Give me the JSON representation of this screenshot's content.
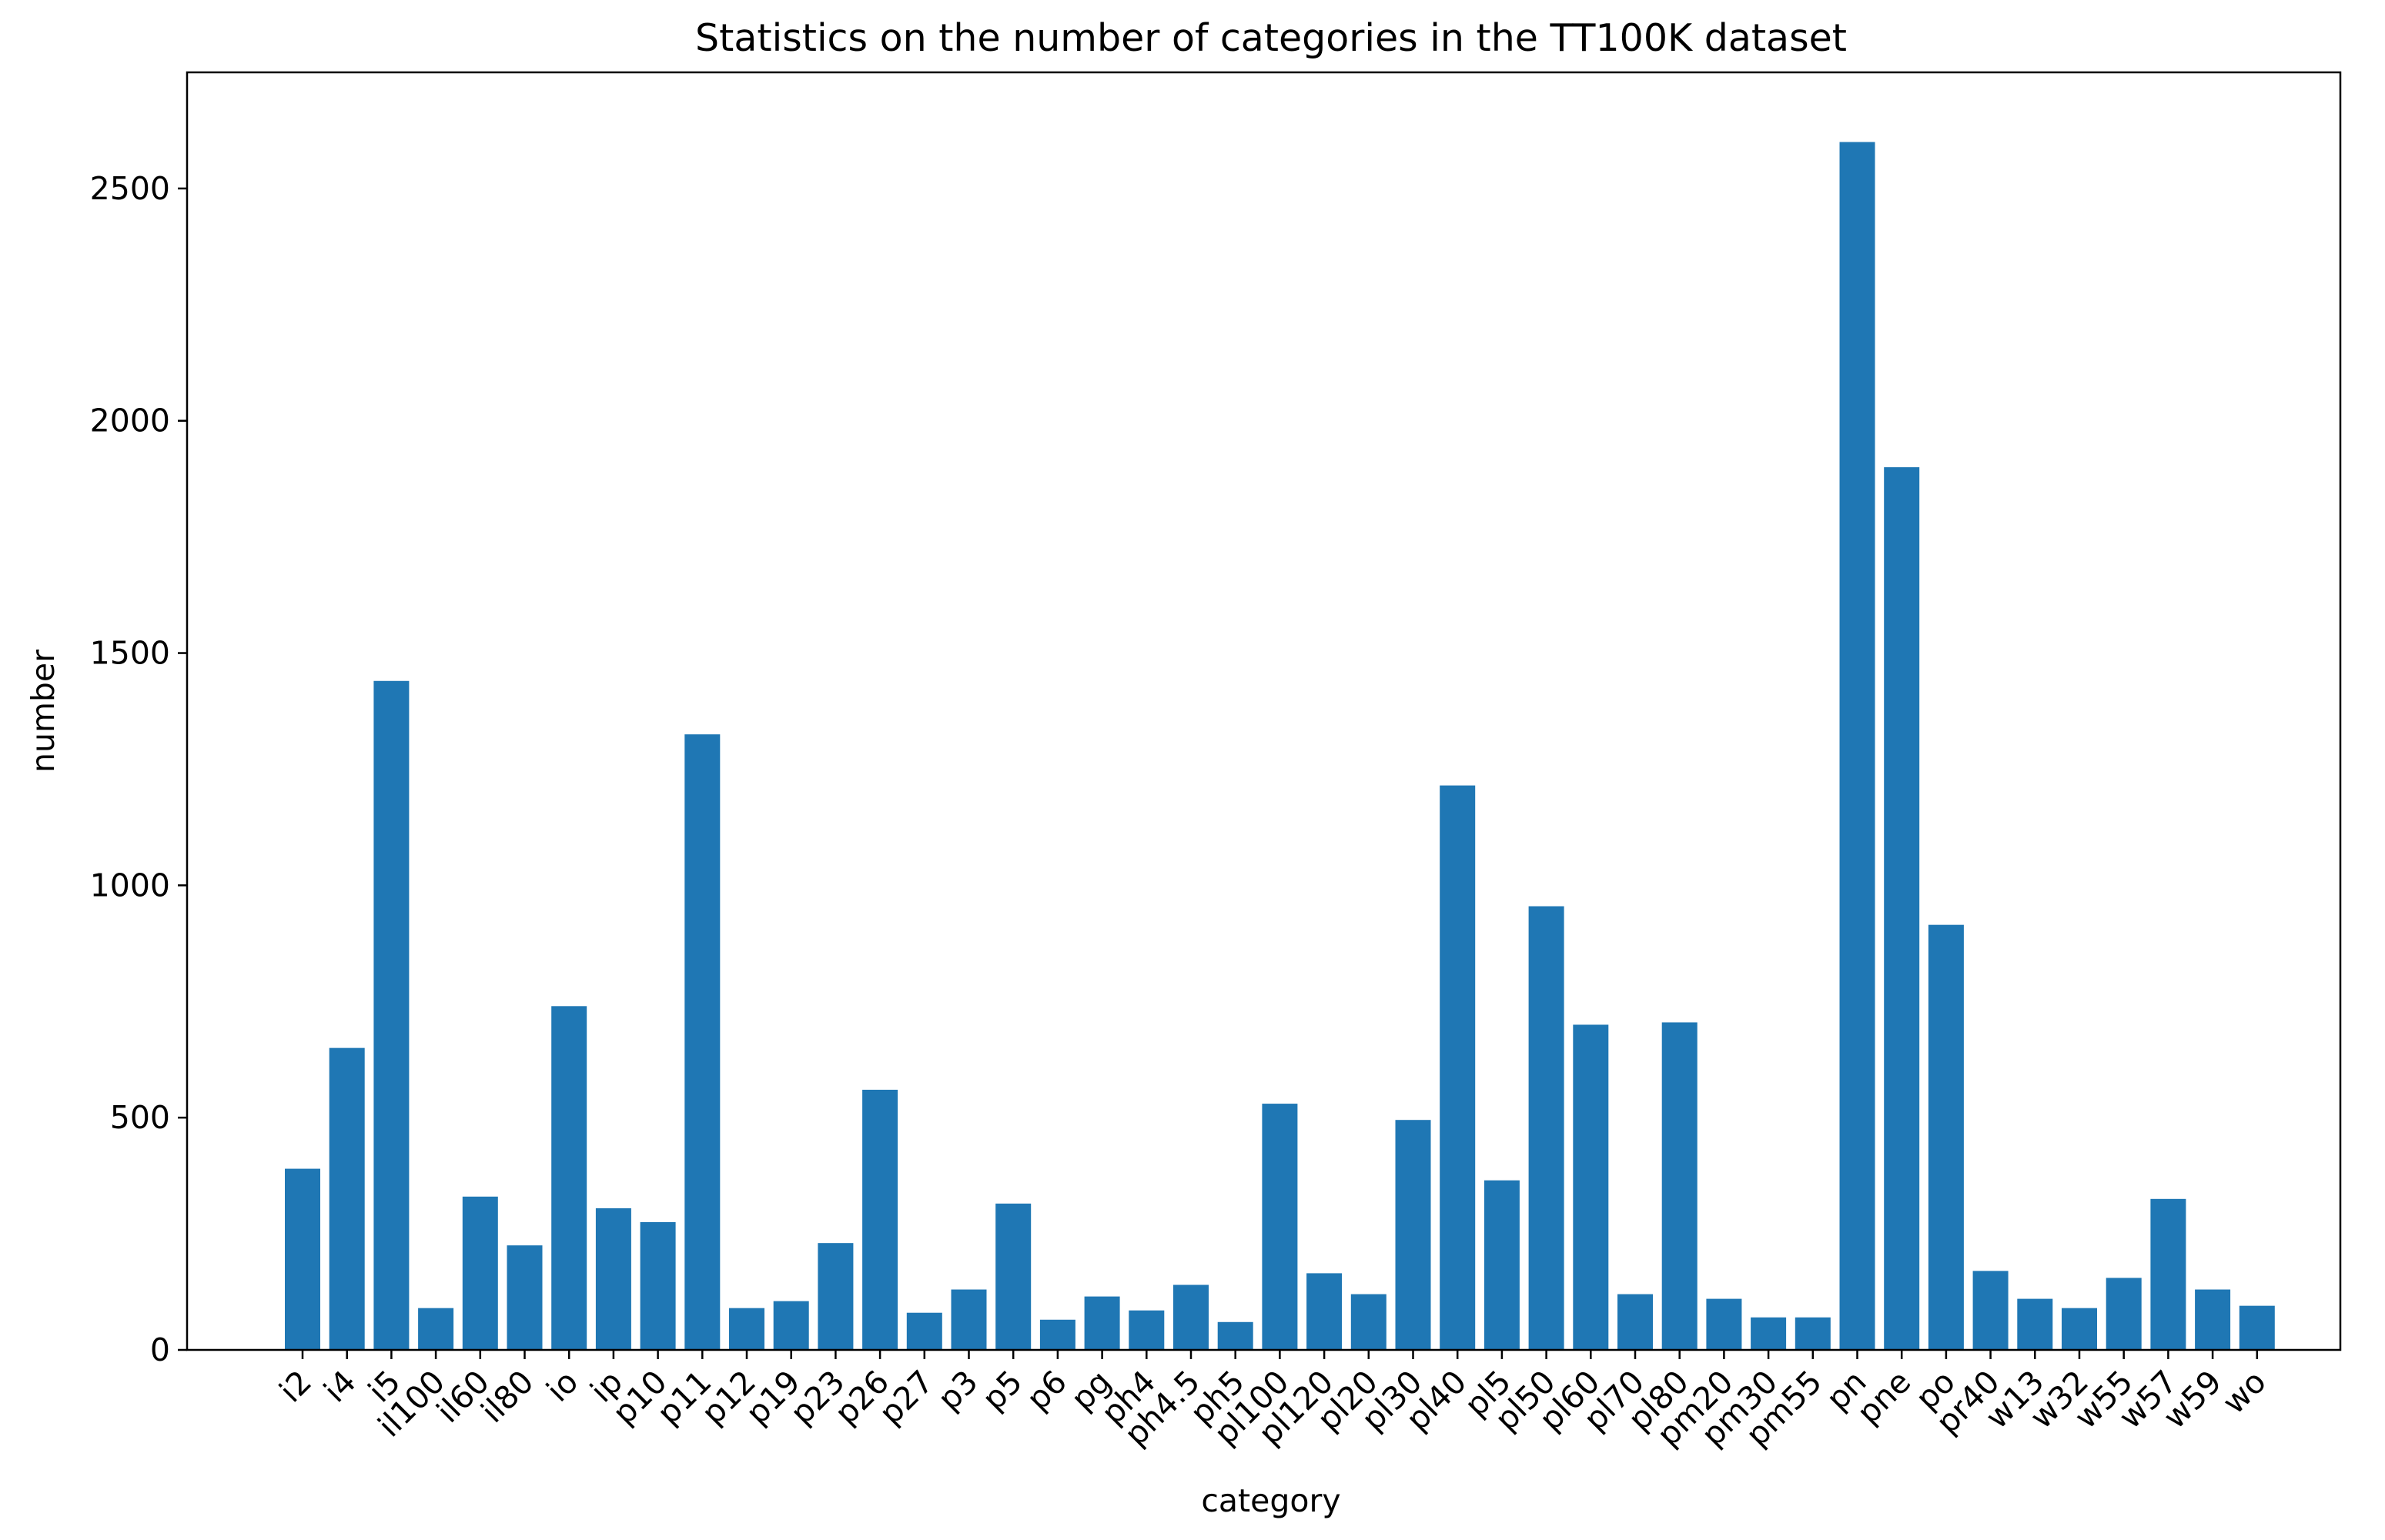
{
  "chart_data": {
    "type": "bar",
    "title": "Statistics on the number of categories in the TT100K dataset",
    "xlabel": "category",
    "ylabel": "number",
    "ylim": [
      0,
      2750
    ],
    "yticks": [
      0,
      500,
      1000,
      1500,
      2000,
      2500
    ],
    "grid": false,
    "color": "#1f77b4",
    "categories": [
      "i2",
      "i4",
      "i5",
      "il100",
      "il60",
      "il80",
      "io",
      "ip",
      "p10",
      "p11",
      "p12",
      "p19",
      "p23",
      "p26",
      "p27",
      "p3",
      "p5",
      "p6",
      "pg",
      "ph4",
      "ph4.5",
      "ph5",
      "pl100",
      "pl120",
      "pl20",
      "pl30",
      "pl40",
      "pl5",
      "pl50",
      "pl60",
      "pl70",
      "pl80",
      "pm20",
      "pm30",
      "pm55",
      "pn",
      "pne",
      "po",
      "pr40",
      "w13",
      "w32",
      "w55",
      "w57",
      "w59",
      "wo"
    ],
    "values": [
      390,
      650,
      1440,
      90,
      330,
      225,
      740,
      305,
      275,
      1325,
      90,
      105,
      230,
      560,
      80,
      130,
      315,
      65,
      115,
      85,
      140,
      60,
      530,
      165,
      120,
      495,
      1215,
      365,
      955,
      700,
      120,
      705,
      110,
      70,
      70,
      2600,
      1900,
      915,
      170,
      110,
      90,
      155,
      325,
      130,
      95
    ]
  }
}
